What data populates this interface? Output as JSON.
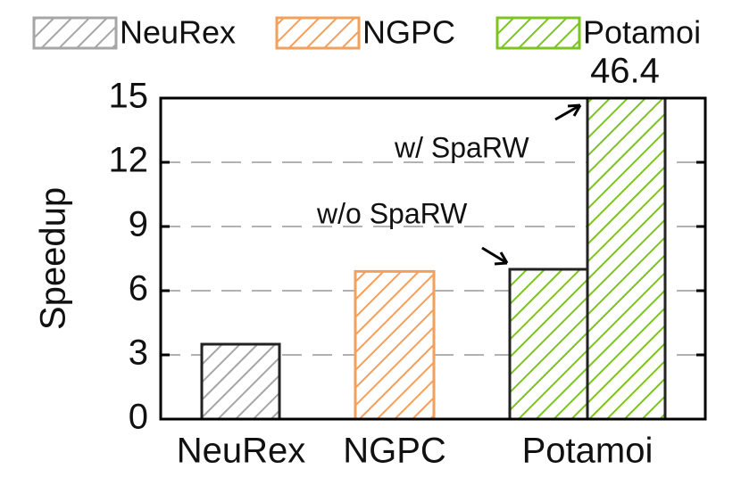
{
  "chart_data": {
    "type": "bar",
    "y_label": "Speedup",
    "categories": [
      "NeuRex",
      "NGPC",
      "Potamoi"
    ],
    "series": [
      {
        "name": "NeuRex",
        "color": "#a6a6a6",
        "values": [
          3.5,
          null,
          null
        ]
      },
      {
        "name": "NGPC",
        "color": "#f5a05a",
        "values": [
          null,
          6.9,
          null
        ]
      },
      {
        "name": "Potamoi",
        "color": "#7cc520",
        "values": [
          null,
          null,
          7.0
        ]
      }
    ],
    "annotations": [
      {
        "text": "w/o SpaRW"
      },
      {
        "text": "w/ SpaRW",
        "value": 46.4
      }
    ],
    "ylim": [
      0,
      15
    ],
    "yticks": [
      0,
      3,
      6,
      9,
      12,
      15
    ],
    "grid": true
  }
}
